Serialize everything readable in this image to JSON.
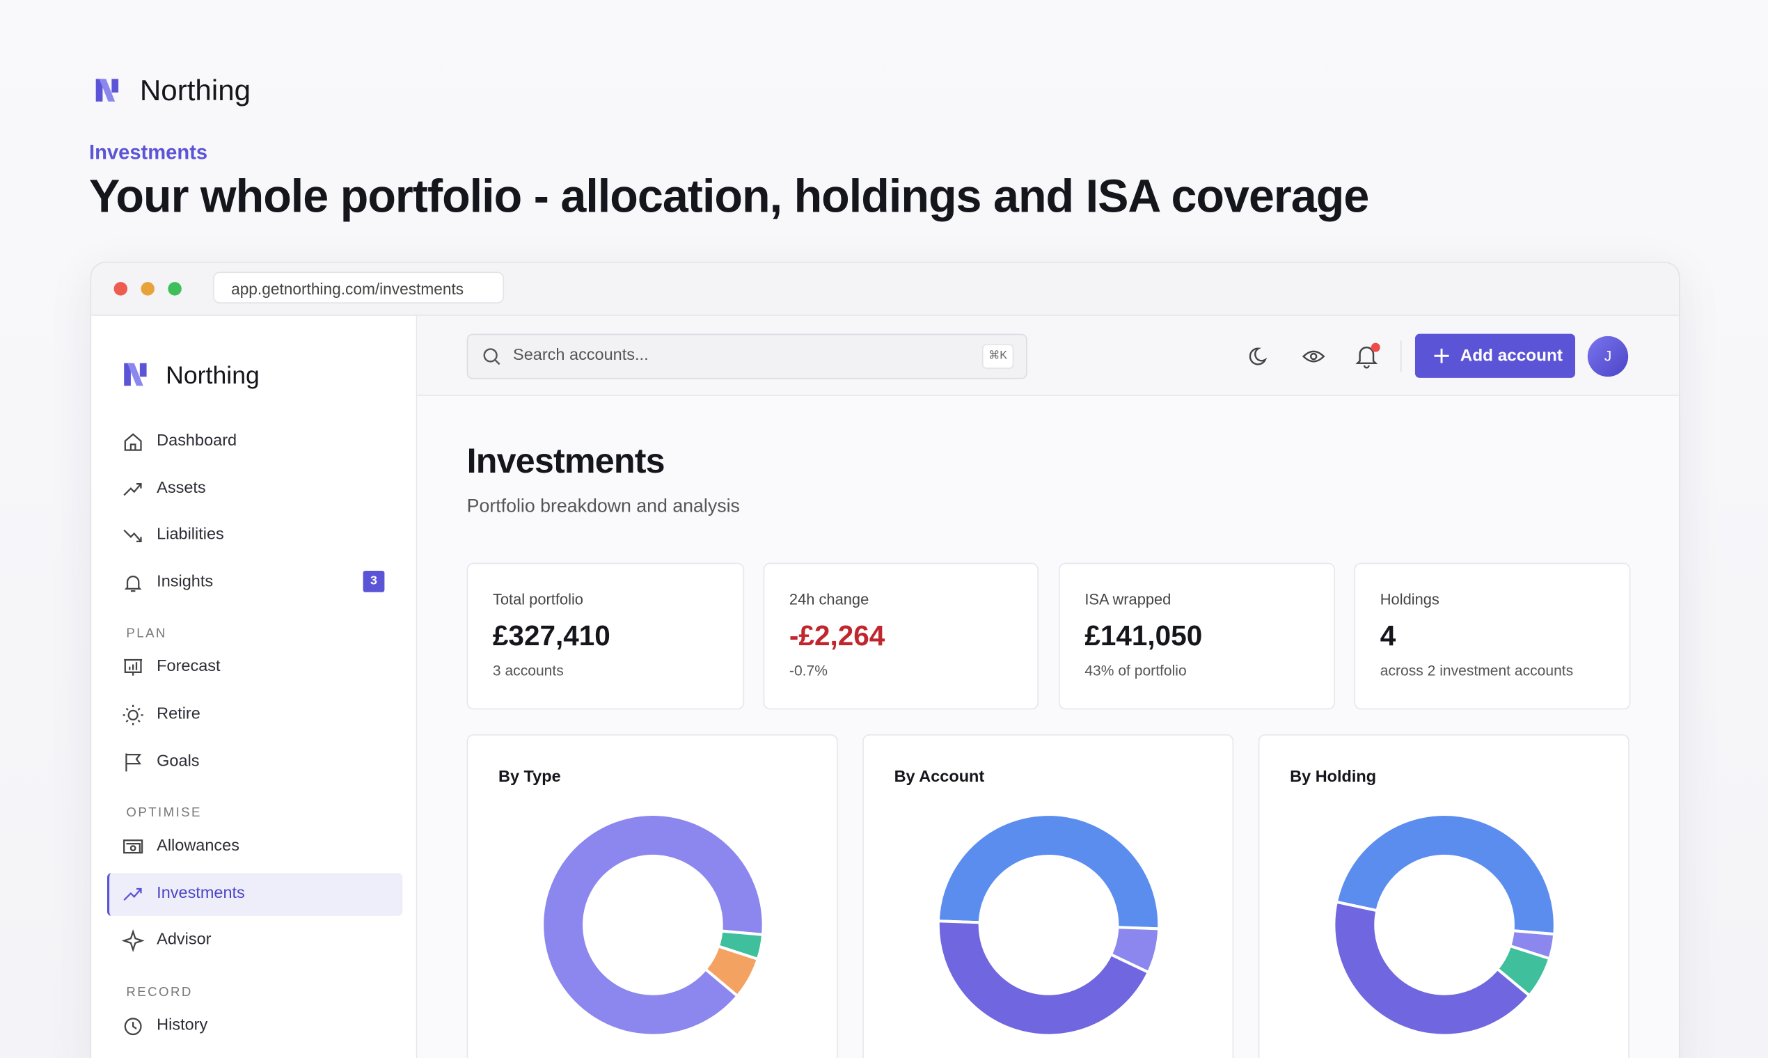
{
  "header": {
    "brand": "Northing",
    "eyebrow": "Investments",
    "headline": "Your whole portfolio - allocation, holdings and ISA coverage"
  },
  "browser": {
    "url": "app.getnorthing.com/investments"
  },
  "sidebar": {
    "brand": "Northing",
    "nav": [
      {
        "label": "Dashboard"
      },
      {
        "label": "Assets"
      },
      {
        "label": "Liabilities"
      },
      {
        "label": "Insights",
        "badge": 3
      }
    ],
    "sections": [
      {
        "heading": "PLAN",
        "items": [
          {
            "label": "Forecast"
          },
          {
            "label": "Retire"
          },
          {
            "label": "Goals"
          }
        ]
      },
      {
        "heading": "OPTIMISE",
        "items": [
          {
            "label": "Allowances"
          },
          {
            "label": "Investments",
            "active": true
          },
          {
            "label": "Advisor"
          }
        ]
      },
      {
        "heading": "RECORD",
        "items": [
          {
            "label": "History"
          }
        ]
      }
    ]
  },
  "topbar": {
    "search_placeholder": "Search accounts...",
    "shortcut": "⌘K",
    "button": "Add account",
    "avatar": "J"
  },
  "page": {
    "title": "Investments",
    "subtitle": "Portfolio breakdown and analysis"
  },
  "stats": [
    {
      "label": "Total portfolio",
      "value": "£327,410",
      "note": "3 accounts"
    },
    {
      "label": "24h change",
      "value": "-£2,264",
      "note": "-0.7%",
      "negative": true
    },
    {
      "label": "ISA wrapped",
      "value": "£141,050",
      "note": "43% of portfolio"
    },
    {
      "label": "Holdings",
      "value": "4",
      "note": "across 2 investment accounts"
    }
  ],
  "charts": [
    {
      "type": "donut",
      "title": "By Type",
      "start_angle": 130,
      "values": [
        90.3,
        3.6,
        6.1
      ],
      "colors": [
        "#8b87ee",
        "#3fbf9c",
        "#f4a261"
      ]
    },
    {
      "type": "donut",
      "title": "By Account",
      "start_angle": 272,
      "values": [
        50,
        6.5,
        43.5
      ],
      "colors": [
        "#5b8def",
        "#8b87ee",
        "#6f66e0"
      ]
    },
    {
      "type": "donut",
      "title": "By Holding",
      "start_angle": 282,
      "values": [
        48,
        3.6,
        6.1,
        42.3
      ],
      "colors": [
        "#5b8def",
        "#8b87ee",
        "#3fbf9c",
        "#6f66e0"
      ]
    }
  ]
}
